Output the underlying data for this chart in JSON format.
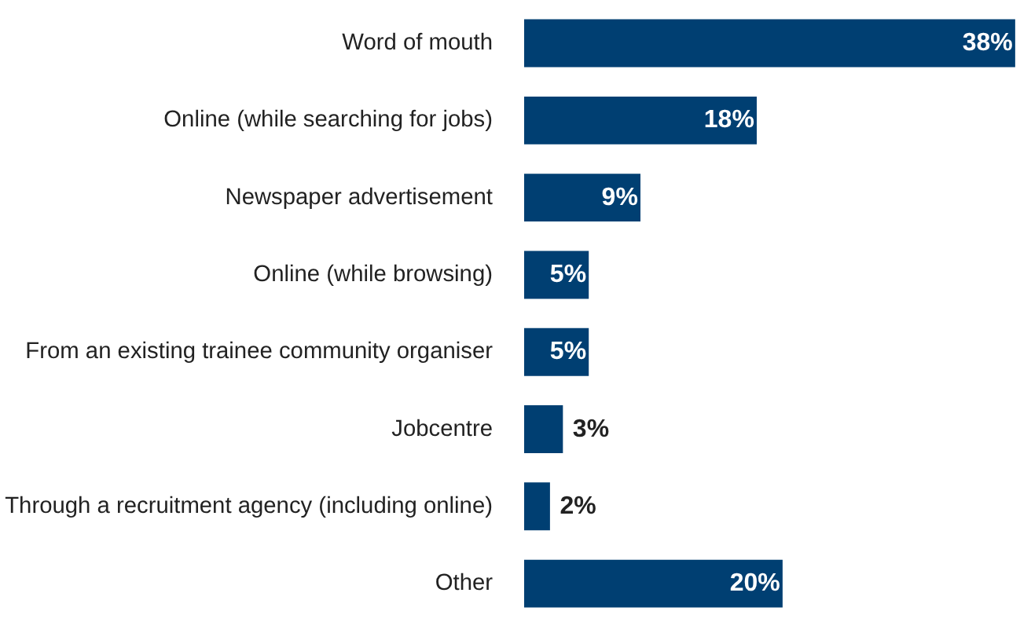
{
  "chart_data": {
    "type": "bar",
    "orientation": "horizontal",
    "categories": [
      "Word of mouth",
      "Online (while searching for jobs)",
      "Newspaper advertisement",
      "Online (while browsing)",
      "From an existing trainee community organiser",
      "Jobcentre",
      "Through a recruitment agency (including online)",
      "Other"
    ],
    "values": [
      38,
      18,
      9,
      5,
      5,
      3,
      2,
      20
    ],
    "value_labels": [
      "38%",
      "18%",
      "9%",
      "5%",
      "5%",
      "3%",
      "2%",
      "20%"
    ],
    "color": "#003f72",
    "grid": false
  }
}
